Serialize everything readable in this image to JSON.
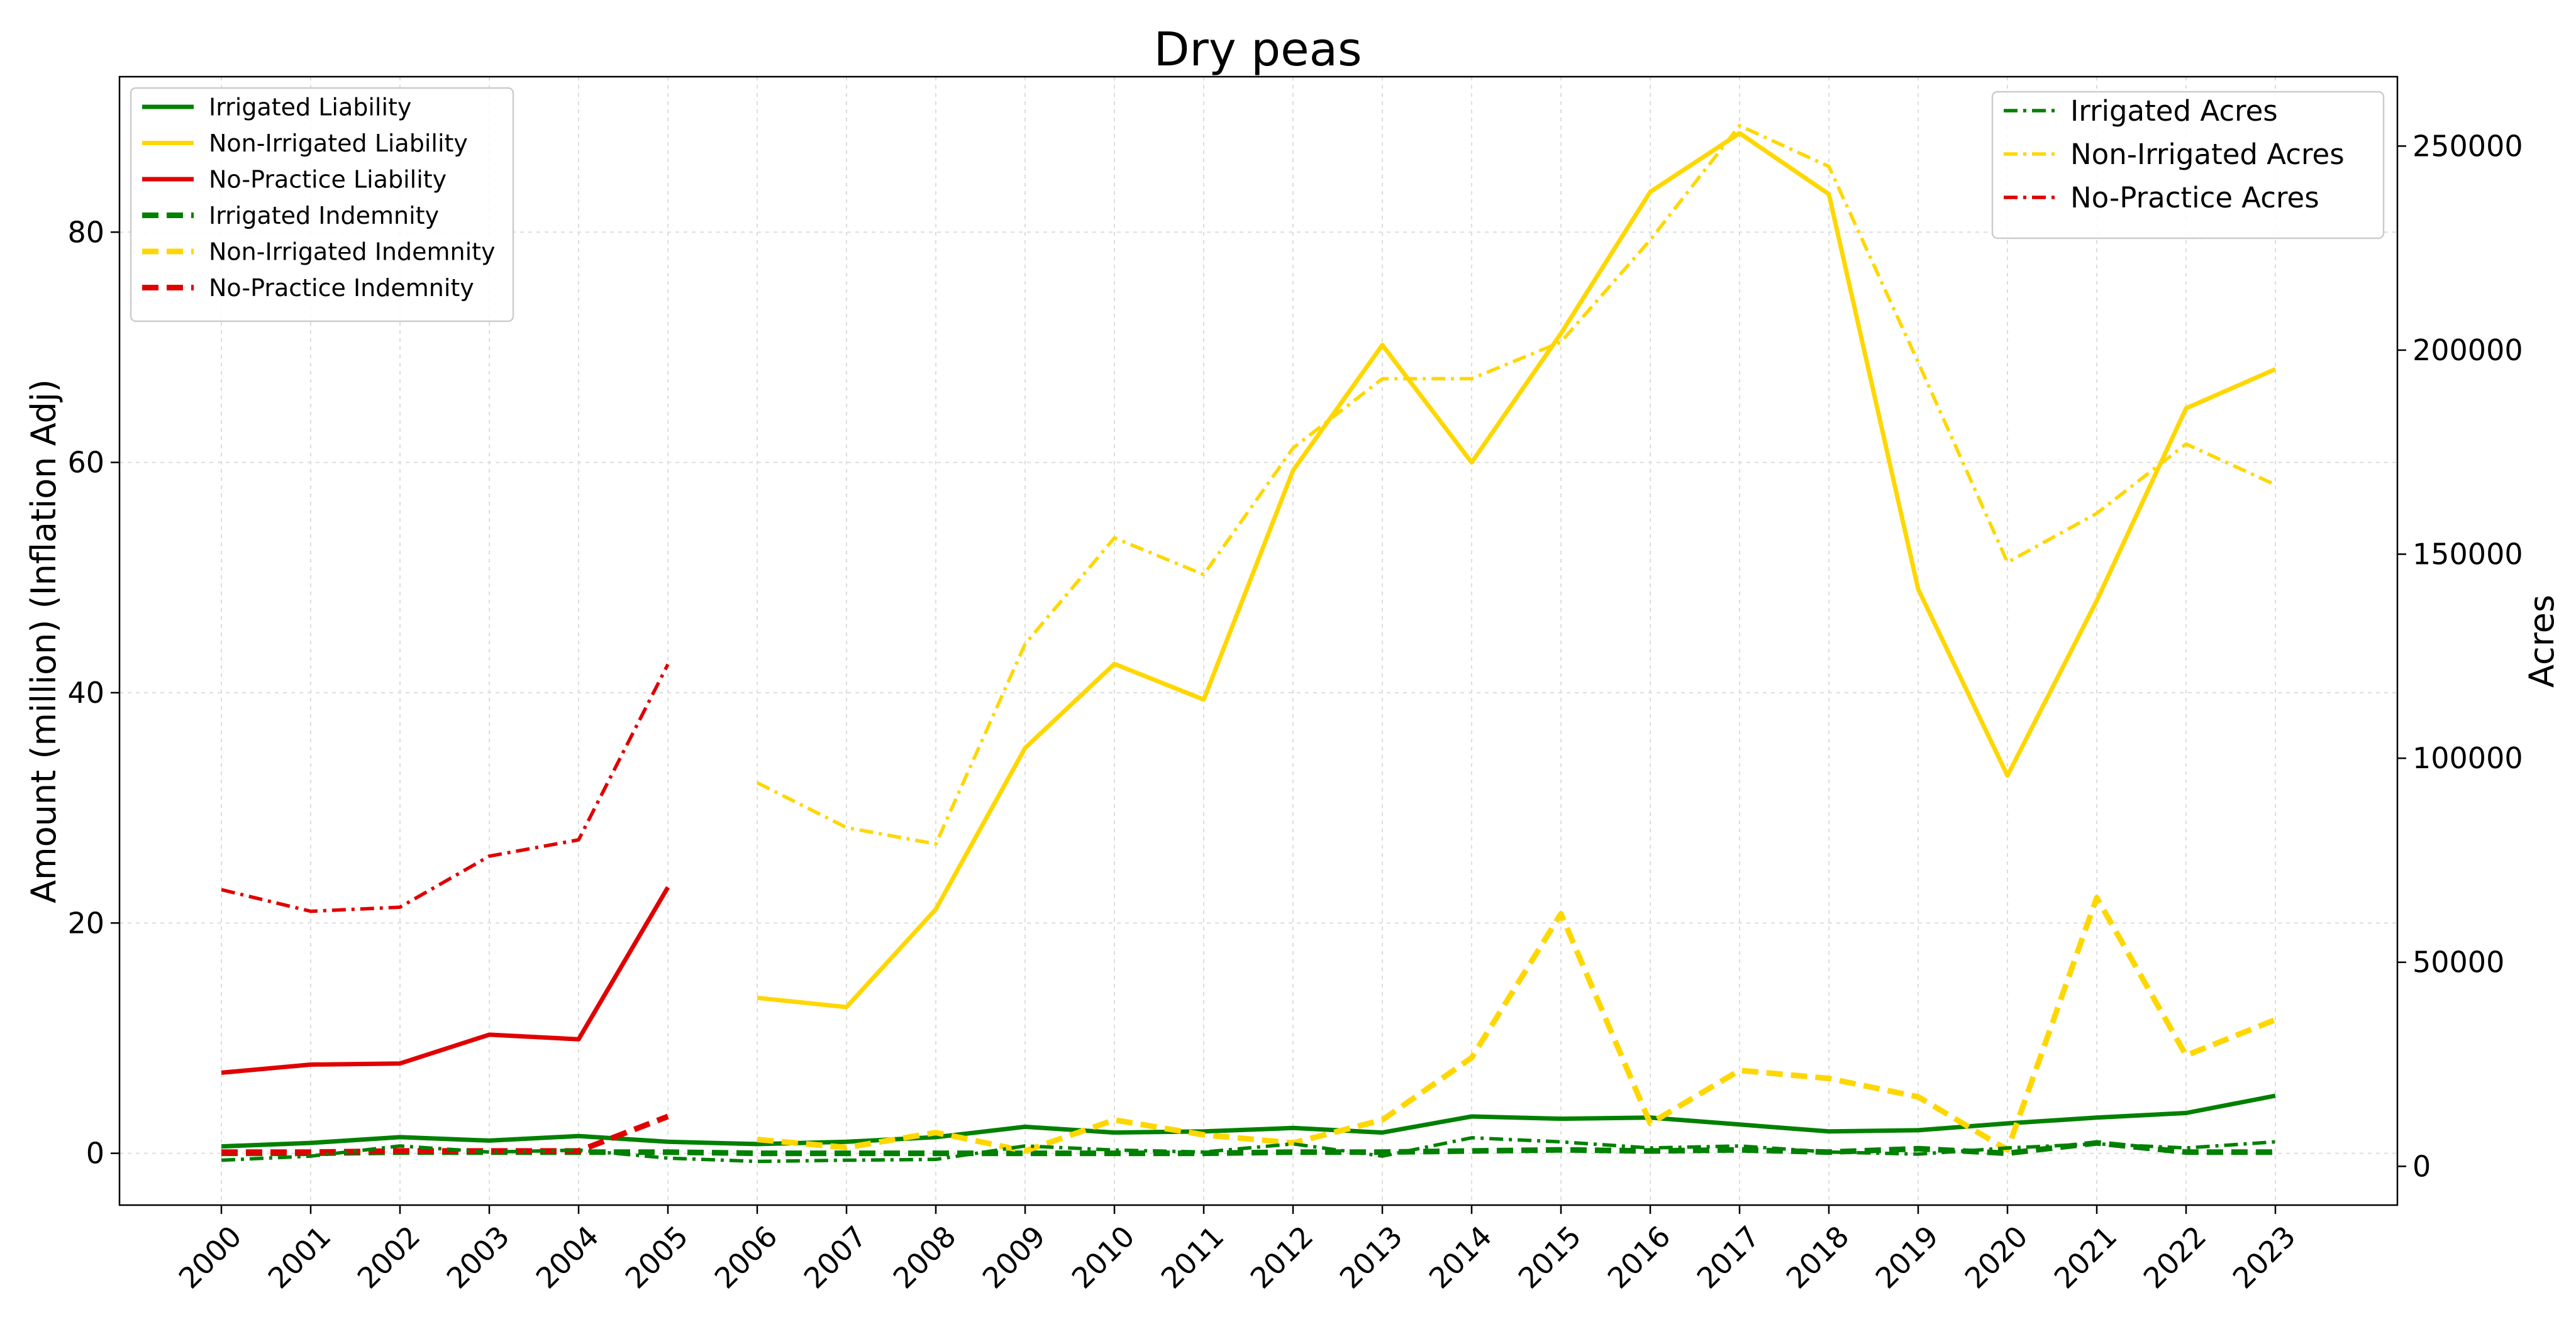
{
  "chart_data": {
    "type": "line",
    "title": "Dry peas",
    "ylabel": "Amount (million) (Inflation Adj)",
    "y2label": "Acres",
    "ylim": [
      -4.5,
      93.5
    ],
    "y2lim": [
      -9500,
      267000
    ],
    "y_ticks": [
      0,
      20,
      40,
      60,
      80
    ],
    "y2_ticks": [
      0,
      50000,
      100000,
      150000,
      200000,
      250000
    ],
    "grid": true,
    "x": [
      "2000",
      "2001",
      "2002",
      "2003",
      "2004",
      "2005",
      "2006",
      "2007",
      "2008",
      "2009",
      "2010",
      "2011",
      "2012",
      "2013",
      "2014",
      "2015",
      "2016",
      "2017",
      "2018",
      "2019",
      "2020",
      "2021",
      "2022",
      "2023"
    ],
    "legend_left_position": "upper-left",
    "legend_right_position": "upper-right",
    "series": [
      {
        "name": "Irrigated Liability",
        "axis": "left",
        "style": "solid",
        "color": "#008000",
        "values": [
          0.6,
          0.9,
          1.4,
          1.1,
          1.5,
          1.0,
          0.8,
          1.0,
          1.4,
          2.3,
          1.8,
          1.9,
          2.2,
          1.8,
          3.2,
          3.0,
          3.1,
          2.5,
          1.9,
          2.0,
          2.6,
          3.1,
          3.5,
          5.0
        ]
      },
      {
        "name": "Non-Irrigated Liability",
        "axis": "left",
        "style": "solid",
        "color": "#FFD700",
        "values": [
          null,
          null,
          null,
          null,
          null,
          null,
          13.5,
          12.7,
          21.2,
          35.2,
          42.5,
          39.4,
          59.3,
          70.2,
          60.0,
          71.2,
          83.5,
          88.6,
          83.3,
          49.0,
          32.8,
          48.0,
          64.7,
          68.1
        ]
      },
      {
        "name": "No-Practice Liability",
        "axis": "left",
        "style": "solid",
        "color": "#E00000",
        "values": [
          7.0,
          7.7,
          7.8,
          10.3,
          9.9,
          23.1,
          null,
          null,
          null,
          null,
          null,
          null,
          null,
          null,
          null,
          null,
          null,
          null,
          null,
          null,
          null,
          null,
          null,
          null
        ]
      },
      {
        "name": "Irrigated Indemnity",
        "axis": "left",
        "style": "dashed",
        "color": "#008000",
        "values": [
          0.0,
          0.0,
          0.1,
          0.1,
          0.1,
          0.1,
          0.0,
          0.0,
          0.0,
          0.0,
          0.0,
          0.0,
          0.1,
          0.1,
          0.2,
          0.3,
          0.2,
          0.3,
          0.1,
          0.4,
          0.0,
          0.9,
          0.1,
          0.1
        ]
      },
      {
        "name": "Non-Irrigated Indemnity",
        "axis": "left",
        "style": "dashed",
        "color": "#FFD700",
        "values": [
          null,
          null,
          null,
          null,
          null,
          null,
          1.2,
          0.5,
          1.8,
          0.2,
          2.9,
          1.6,
          0.9,
          2.9,
          8.3,
          20.8,
          2.6,
          7.2,
          6.5,
          4.9,
          0.3,
          22.2,
          8.5,
          11.6
        ]
      },
      {
        "name": "No-Practice Indemnity",
        "axis": "left",
        "style": "dashed",
        "color": "#E00000",
        "values": [
          0.1,
          0.1,
          0.2,
          0.2,
          0.2,
          3.2,
          null,
          null,
          null,
          null,
          null,
          null,
          null,
          null,
          null,
          null,
          null,
          null,
          null,
          null,
          null,
          null,
          null,
          null
        ]
      },
      {
        "name": "Irrigated Acres",
        "axis": "right",
        "style": "dashdot",
        "color": "#008000",
        "values": [
          1500,
          2500,
          5000,
          3500,
          4000,
          2000,
          1200,
          1500,
          1700,
          5000,
          4000,
          3500,
          5500,
          2500,
          7000,
          6000,
          4500,
          5000,
          3500,
          3000,
          4500,
          5500,
          4500,
          6000
        ]
      },
      {
        "name": "Non-Irrigated Acres",
        "axis": "right",
        "style": "dashdot",
        "color": "#FFD700",
        "values": [
          null,
          null,
          null,
          null,
          null,
          null,
          94000,
          83000,
          79000,
          128000,
          154000,
          145000,
          176000,
          193000,
          193000,
          202000,
          227000,
          255000,
          245000,
          197000,
          148000,
          160000,
          177000,
          167000
        ]
      },
      {
        "name": "No-Practice Acres",
        "axis": "right",
        "style": "dashdot",
        "color": "#E00000",
        "values": [
          67800,
          62500,
          63500,
          76000,
          80000,
          123000,
          null,
          null,
          null,
          null,
          null,
          null,
          null,
          null,
          null,
          null,
          null,
          null,
          null,
          null,
          null,
          null,
          null,
          null
        ]
      }
    ]
  }
}
